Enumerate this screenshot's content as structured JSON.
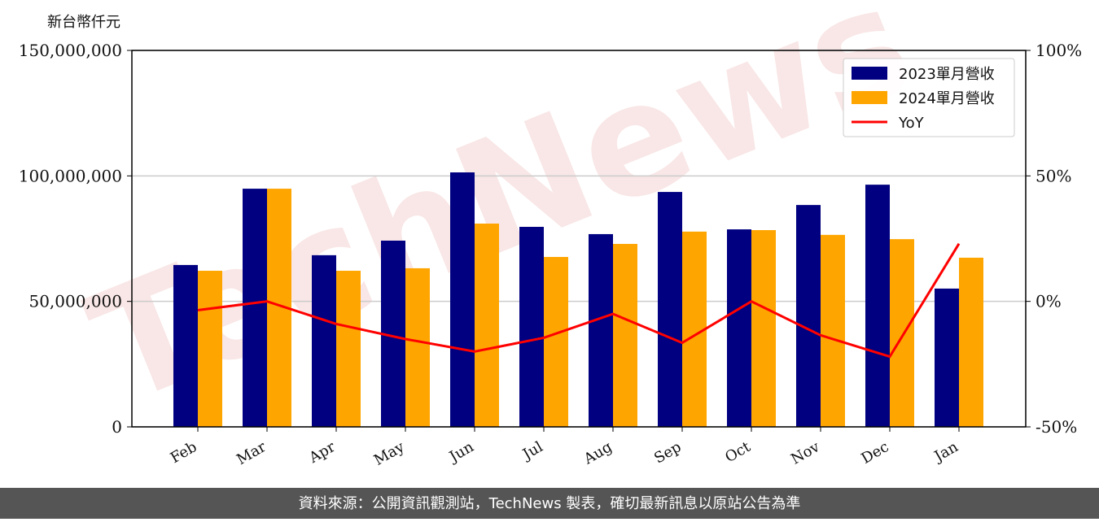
{
  "chart_data": {
    "type": "bar_line",
    "y_label": "新台幣仟元",
    "watermark": "TechNews",
    "footer": "資料來源：公開資訊觀測站，TechNews 製表，確切最新訊息以原站公告為準",
    "categories": [
      "Feb",
      "Mar",
      "Apr",
      "May",
      "Jun",
      "Jul",
      "Aug",
      "Sep",
      "Oct",
      "Nov",
      "Dec",
      "Jan"
    ],
    "series": [
      {
        "name": "2023單月營收",
        "color": "#000080",
        "type": "bar",
        "values": [
          64500000,
          94900000,
          68400000,
          74200000,
          101400000,
          79700000,
          76800000,
          93600000,
          78700000,
          88400000,
          96500000,
          55100000
        ]
      },
      {
        "name": "2024單月營收",
        "color": "#ffa500",
        "type": "bar",
        "values": [
          62200000,
          94900000,
          62200000,
          63200000,
          81000000,
          67700000,
          72900000,
          77800000,
          78400000,
          76500000,
          74800000,
          67400000
        ]
      },
      {
        "name": "YoY",
        "color": "#ff0000",
        "type": "line",
        "axis": "y2",
        "values": [
          -3.5,
          0,
          -9,
          -15,
          -20,
          -14.5,
          -5,
          -16.5,
          0,
          -13.5,
          -22,
          23
        ]
      }
    ],
    "ylim": [
      0,
      150000000
    ],
    "yticks": [
      0,
      {
        "value": 50000000,
        "label": "50,000,000"
      },
      {
        "value": 100000000,
        "label": "100,000,000"
      },
      {
        "value": 150000000,
        "label": "150,000,000"
      }
    ],
    "y2lim": [
      -50,
      100
    ],
    "y2ticks": [
      {
        "value": -50,
        "label": "-50%"
      },
      {
        "value": 0,
        "label": "0%"
      },
      {
        "value": 50,
        "label": "50%"
      },
      {
        "value": 100,
        "label": "100%"
      }
    ],
    "grid": true,
    "legend": "upper right"
  }
}
